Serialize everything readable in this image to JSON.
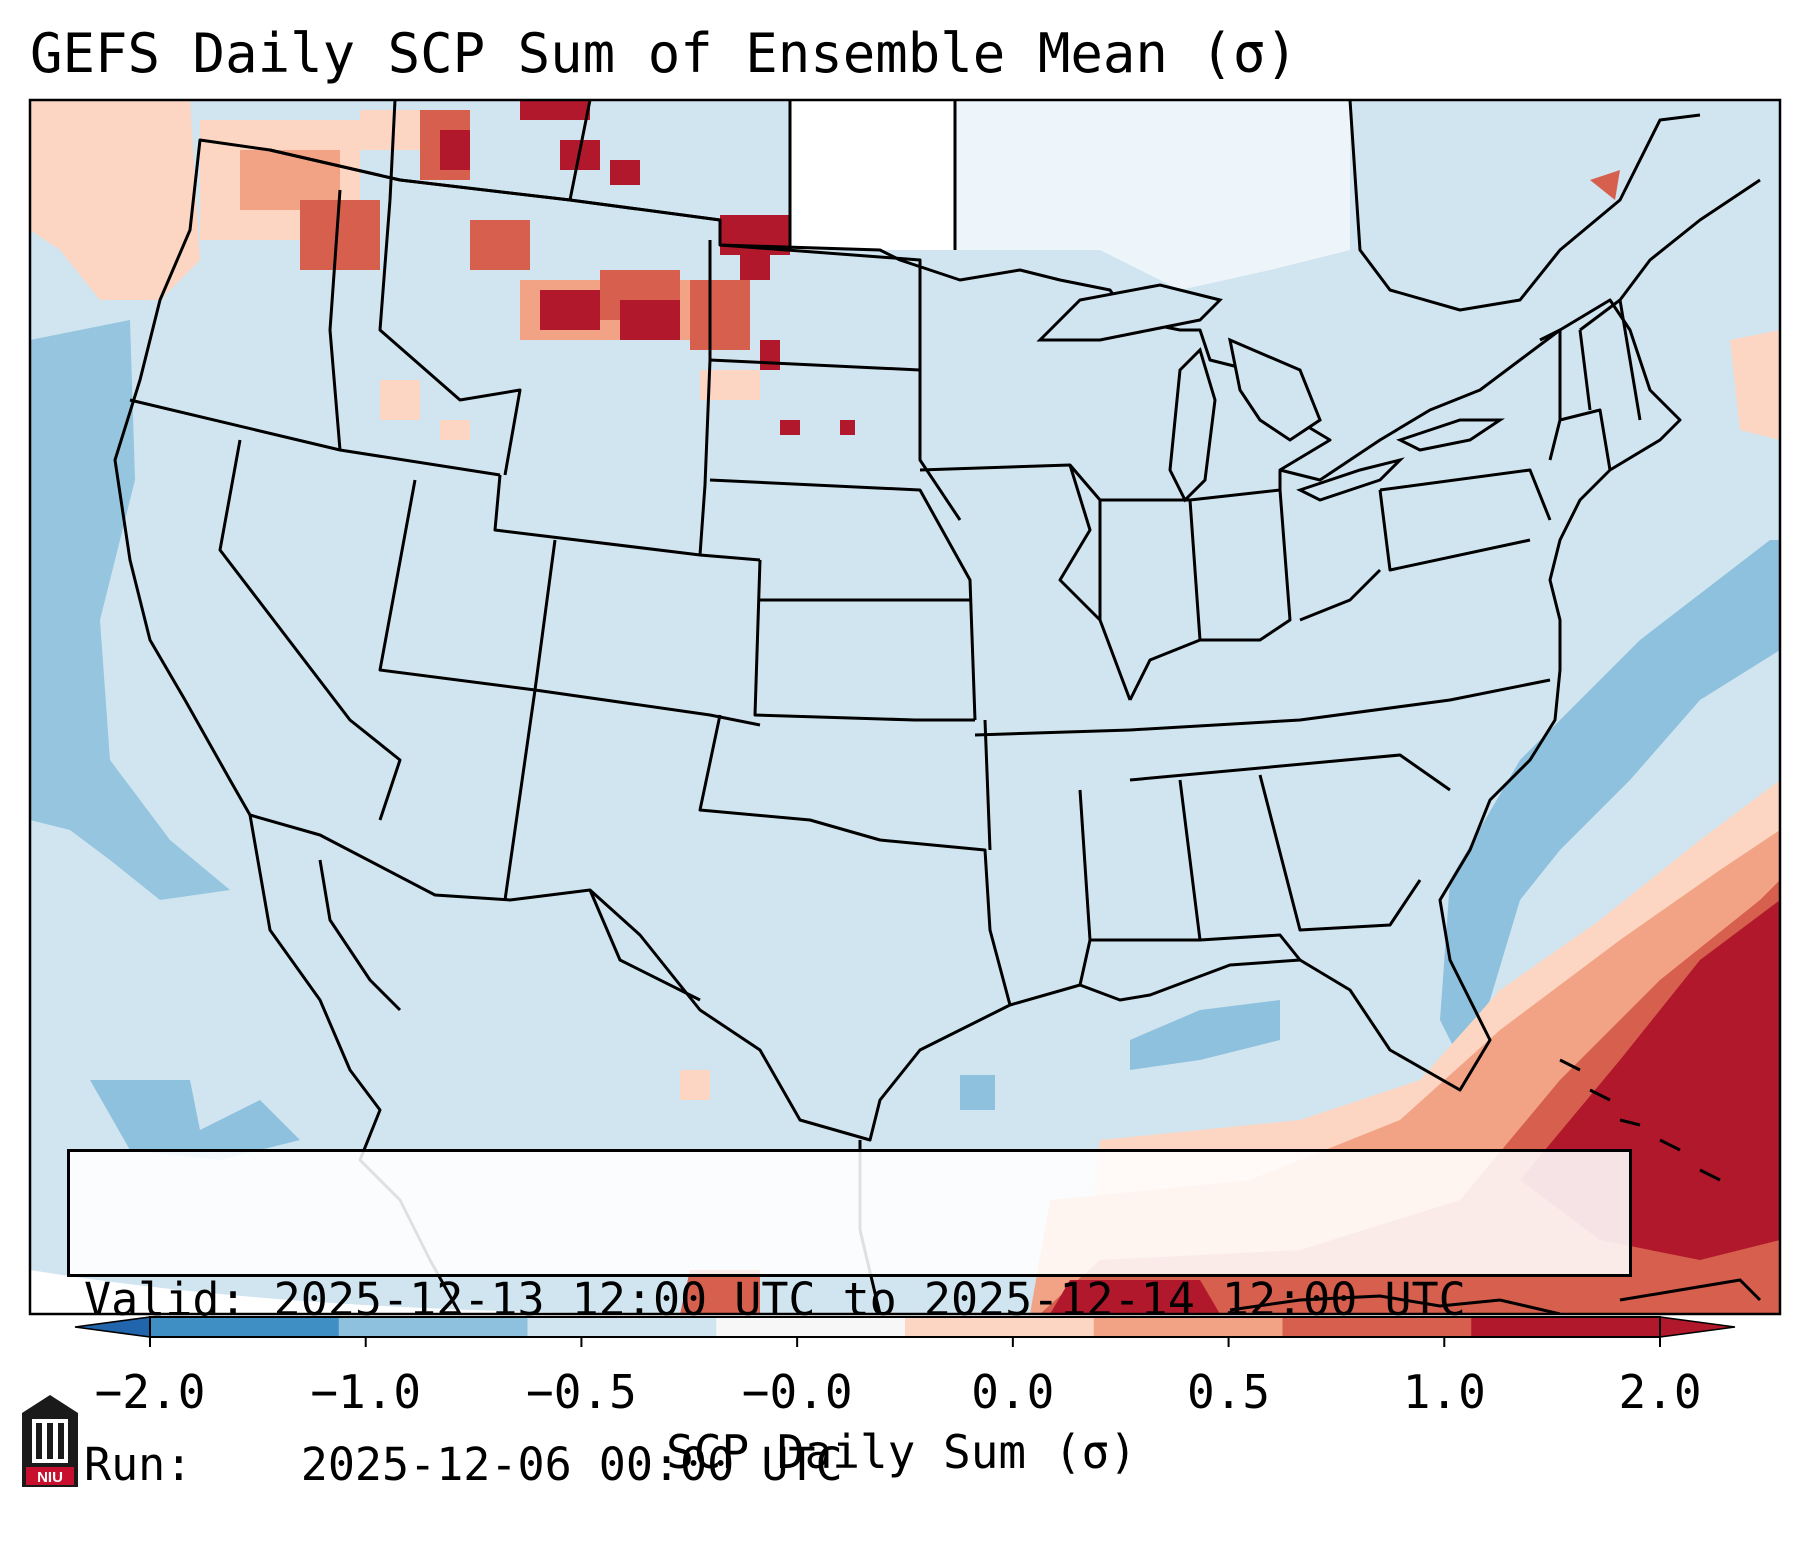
{
  "title": "GEFS Daily SCP Sum of Ensemble Mean (σ)",
  "info": {
    "valid_label": "Valid:",
    "valid_value": "2025-12-13 12:00 UTC to 2025-12-14 12:00 UTC",
    "run_label": "Run:",
    "run_value": "2025-12-06 00:00 UTC"
  },
  "colorbar": {
    "label": "SCP Daily Sum (σ)",
    "ticks": [
      "−2.0",
      "−1.0",
      "−0.5",
      "−0.0",
      "0.0",
      "0.5",
      "1.0",
      "2.0"
    ],
    "colors": [
      "#3f8fc5",
      "#8ec1dd",
      "#d1e5f0",
      "#f7f7f7",
      "#fcd6c2",
      "#f2a385",
      "#d65f4d",
      "#b2182b"
    ],
    "extend_low_color": "#2166ac",
    "extend_high_color": "#b2182b"
  },
  "legend_colors": {
    "ocean_background": "#d1e5f0",
    "missing_data": "#ffffff",
    "state_borders": "#000000"
  },
  "logo": {
    "text": "NIU",
    "icon": "university-building-icon"
  }
}
